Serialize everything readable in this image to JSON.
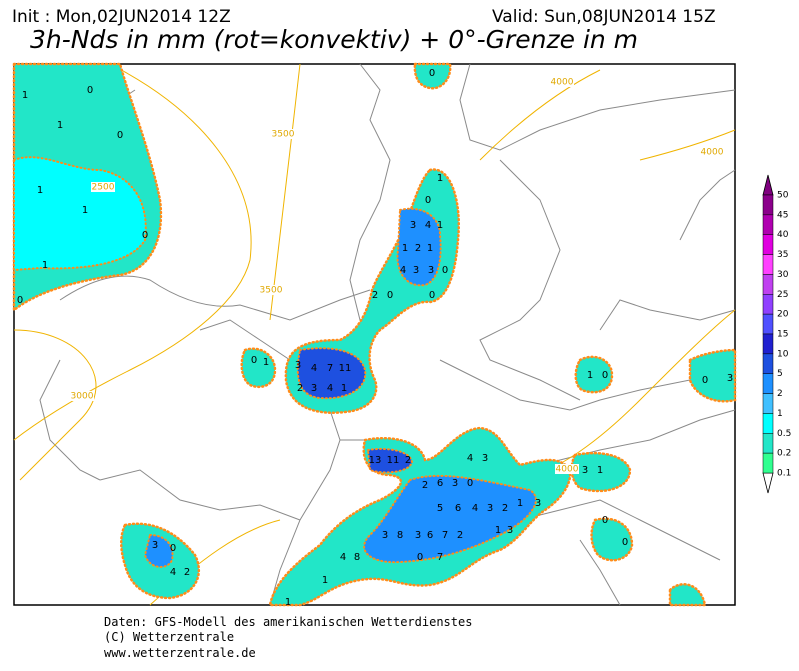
{
  "header": {
    "init": "Init : Mon,02JUN2014 12Z",
    "valid": "Valid: Sun,08JUN2014 15Z",
    "title": "3h-Nds in mm (rot=konvektiv) + 0°-Grenze in m"
  },
  "contour_labels": [
    "4000",
    "4000",
    "3500",
    "3500",
    "2500",
    "3000",
    "4000"
  ],
  "precip_labels": [
    "1",
    "0",
    "1",
    "0",
    "1",
    "1",
    "0",
    "1",
    "0",
    "0",
    "1",
    "0",
    "3",
    "4",
    "1",
    "1",
    "2",
    "1",
    "4",
    "3",
    "3",
    "0",
    "0",
    "0",
    "2",
    "0",
    "1",
    "3",
    "4",
    "7",
    "11",
    "2",
    "3",
    "4",
    "1",
    "1",
    "0",
    "0",
    "3",
    "13",
    "11",
    "2",
    "4",
    "3",
    "2",
    "6",
    "3",
    "0",
    "5",
    "6",
    "4",
    "3",
    "2",
    "1",
    "3",
    "3",
    "1",
    "3",
    "8",
    "3",
    "6",
    "7",
    "2",
    "1",
    "3",
    "4",
    "8",
    "0",
    "7",
    "3",
    "0",
    "4",
    "2",
    "1",
    "1",
    "0",
    "0"
  ],
  "colorbar": {
    "labels": [
      "50",
      "45",
      "40",
      "35",
      "30",
      "25",
      "20",
      "15",
      "10",
      "5",
      "2",
      "1",
      "0.5",
      "0.2",
      "0.1"
    ],
    "colors": [
      "#800080",
      "#8b008b",
      "#b000b0",
      "#e000e0",
      "#ff40ff",
      "#c040f0",
      "#9040ff",
      "#5050ff",
      "#2020d0",
      "#1e50e0",
      "#1e90ff",
      "#40c0ff",
      "#00ffff",
      "#22e6c8",
      "#30ff90"
    ]
  },
  "footer": [
    "Daten: GFS-Modell des amerikanischen Wetterdienstes",
    "(C) Wetterzentrale",
    "www.wetterzentrale.de"
  ]
}
